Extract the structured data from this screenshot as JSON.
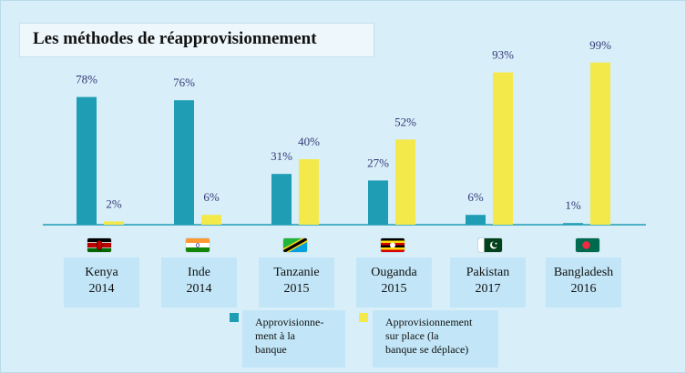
{
  "title": "Les méthodes de réapprovisionnement",
  "colors": {
    "bank": "#1f9db5",
    "onsite": "#f4e94a",
    "label": "#333a78",
    "baseline": "#1f9db5"
  },
  "chart_data": {
    "type": "bar",
    "categories": [
      {
        "name": "Kenya",
        "year": "2014",
        "flag": "kenya-flag-icon"
      },
      {
        "name": "Inde",
        "year": "2014",
        "flag": "india-flag-icon"
      },
      {
        "name": "Tanzanie",
        "year": "2015",
        "flag": "tanzania-flag-icon"
      },
      {
        "name": "Ouganda",
        "year": "2015",
        "flag": "uganda-flag-icon"
      },
      {
        "name": "Pakistan",
        "year": "2017",
        "flag": "pakistan-flag-icon"
      },
      {
        "name": "Bangladesh",
        "year": "2016",
        "flag": "bangladesh-flag-icon"
      }
    ],
    "series": [
      {
        "name": "Approvisionne-ment à la banque",
        "values": [
          78,
          76,
          31,
          27,
          6,
          1
        ],
        "labels": [
          "78%",
          "76%",
          "31%",
          "27%",
          "6%",
          "1%"
        ]
      },
      {
        "name": "Approvisionnement sur place (la banque se déplace)",
        "values": [
          2,
          6,
          40,
          52,
          93,
          99
        ],
        "labels": [
          "2%",
          "6%",
          "40%",
          "52%",
          "93%",
          "99%"
        ]
      }
    ],
    "ylim": [
      0,
      100
    ]
  },
  "legend": [
    {
      "lines": [
        "Approvisionne-",
        "ment à la",
        "banque"
      ]
    },
    {
      "lines": [
        "Approvisionnement",
        "sur place (la",
        "banque se déplace)"
      ]
    }
  ]
}
